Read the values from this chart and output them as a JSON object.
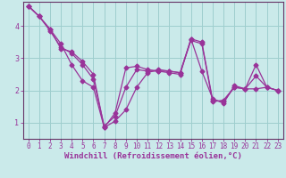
{
  "xlabel": "Windchill (Refroidissement éolien,°C)",
  "background_color": "#caeaea",
  "grid_color": "#9ecece",
  "line_color": "#993399",
  "axis_color": "#663366",
  "xlim": [
    -0.5,
    23.5
  ],
  "ylim": [
    0.5,
    4.75
  ],
  "yticks": [
    1,
    2,
    3,
    4
  ],
  "xticks": [
    0,
    1,
    2,
    3,
    4,
    5,
    6,
    7,
    8,
    9,
    10,
    11,
    12,
    13,
    14,
    15,
    16,
    17,
    18,
    19,
    20,
    21,
    22,
    23
  ],
  "series": [
    [
      4.62,
      4.3,
      3.9,
      3.45,
      2.8,
      2.3,
      2.1,
      0.85,
      1.05,
      1.4,
      2.1,
      2.55,
      2.65,
      2.6,
      2.55,
      3.55,
      3.45,
      1.65,
      1.7,
      2.1,
      2.05,
      2.8,
      2.1,
      2.0
    ],
    [
      4.62,
      4.3,
      3.9,
      3.3,
      3.2,
      2.9,
      2.5,
      0.85,
      1.3,
      2.7,
      2.75,
      2.65,
      2.6,
      2.55,
      2.5,
      3.6,
      2.6,
      1.75,
      1.6,
      2.15,
      2.05,
      2.05,
      2.1,
      2.0
    ],
    [
      4.62,
      4.3,
      3.85,
      3.35,
      3.15,
      2.8,
      2.35,
      0.9,
      1.2,
      2.1,
      2.65,
      2.6,
      2.6,
      2.6,
      2.55,
      3.6,
      3.5,
      1.7,
      1.65,
      2.1,
      2.05,
      2.45,
      2.1,
      2.0
    ]
  ],
  "marker": "D",
  "markersize": 2.5,
  "linewidth": 0.9,
  "xlabel_fontsize": 6.5,
  "tick_fontsize": 5.5,
  "label_bottom_color": "#660066",
  "label_bottom_bg": "#9966cc"
}
